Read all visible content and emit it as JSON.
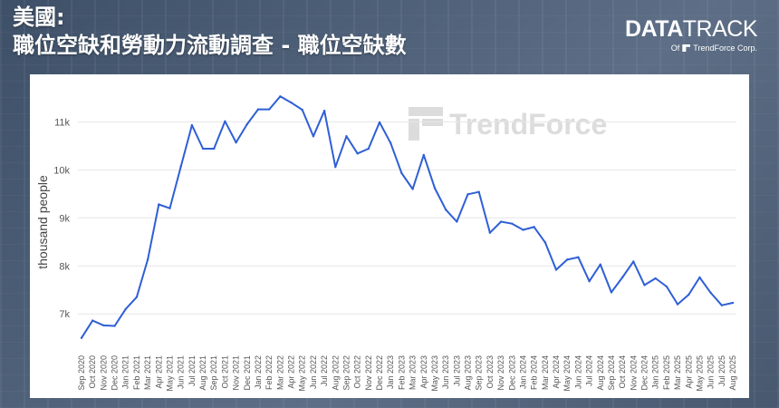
{
  "header": {
    "title_line1": "美國:",
    "title_line2": "職位空缺和勞動力流動調查 - 職位空缺數"
  },
  "logo": {
    "main_bold": "DATA",
    "main_light": "TRACK",
    "sub_prefix": "Of",
    "sub_brand": "TrendForce Corp."
  },
  "watermark": "TrendForce",
  "colors": {
    "line": "#2f5fd6",
    "grid": "#e6e6e6",
    "panel": "#ffffff"
  },
  "chart_data": {
    "type": "line",
    "ylabel": "thousand people",
    "xlabel": "",
    "ylim": [
      6400,
      11800
    ],
    "yticks": [
      7000,
      8000,
      9000,
      10000,
      11000
    ],
    "ytick_labels": [
      "7k",
      "8k",
      "9k",
      "10k",
      "11k"
    ],
    "grid": "horizontal",
    "categories": [
      "Sep 2020",
      "Oct 2020",
      "Nov 2020",
      "Dec 2020",
      "Jan 2021",
      "Feb 2021",
      "Mar 2021",
      "Apr 2021",
      "May 2021",
      "Jun 2021",
      "Jul 2021",
      "Aug 2021",
      "Sep 2021",
      "Oct 2021",
      "Nov 2021",
      "Dec 2021",
      "Jan 2022",
      "Feb 2022",
      "Mar 2022",
      "Apr 2022",
      "May 2022",
      "Jun 2022",
      "Jul 2022",
      "Aug 2022",
      "Sep 2022",
      "Oct 2022",
      "Nov 2022",
      "Dec 2022",
      "Jan 2023",
      "Feb 2023",
      "Mar 2023",
      "Apr 2023",
      "May 2023",
      "Jun 2023",
      "Jul 2023",
      "Aug 2023",
      "Sep 2023",
      "Oct 2023",
      "Nov 2023",
      "Dec 2023",
      "Jan 2024",
      "Feb 2024",
      "Mar 2024",
      "Apr 2024",
      "May 2024",
      "Jun 2024",
      "Jul 2024",
      "Aug 2024",
      "Sep 2024",
      "Oct 2024",
      "Nov 2024",
      "Dec 2024",
      "Jan 2025",
      "Feb 2025",
      "Mar 2025",
      "Apr 2025",
      "May 2025",
      "Jun 2025",
      "Jul 2025",
      "Aug 2025"
    ],
    "series": [
      {
        "values": [
          6500,
          6860,
          6760,
          6750,
          7100,
          7350,
          8130,
          9280,
          9200,
          10070,
          10930,
          10440,
          10440,
          11010,
          10570,
          10950,
          11260,
          11260,
          11530,
          11400,
          11250,
          10700,
          11230,
          10060,
          10700,
          10340,
          10440,
          10990,
          10560,
          9930,
          9600,
          10310,
          9620,
          9170,
          8920,
          9490,
          9540,
          8690,
          8920,
          8880,
          8750,
          8810,
          8490,
          7920,
          8130,
          8180,
          7680,
          8030,
          7450,
          7760,
          8090,
          7600,
          7740,
          7570,
          7200,
          7400,
          7760,
          7440,
          7180,
          7230
        ]
      }
    ]
  }
}
